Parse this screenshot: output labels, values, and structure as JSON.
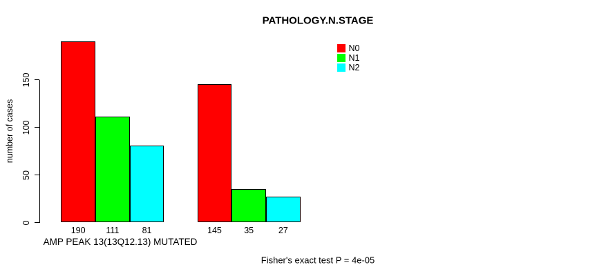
{
  "figure": {
    "title": "PATHOLOGY.N.STAGE",
    "y_axis_label": "number of cases",
    "group_label": "AMP PEAK 13(13Q12.13) MUTATED",
    "annotation": "Fisher's exact test P = 4e-05"
  },
  "chart_data": {
    "type": "bar",
    "title": "PATHOLOGY.N.STAGE",
    "xlabel": "AMP PEAK 13(13Q12.13) MUTATED",
    "ylabel": "number of cases",
    "categories": [
      "AMP PEAK 13(13Q12.13) MUTATED",
      ""
    ],
    "series": [
      {
        "name": "N0",
        "color": "#ff0000",
        "values": [
          190,
          145
        ]
      },
      {
        "name": "N1",
        "color": "#00ff00",
        "values": [
          111,
          35
        ]
      },
      {
        "name": "N2",
        "color": "#00ffff",
        "values": [
          81,
          27
        ]
      }
    ],
    "yticks": [
      0,
      50,
      100,
      150
    ],
    "ylim": [
      0,
      190
    ],
    "grid": false,
    "legend_position": "top-right",
    "bar_value_labels_shown": true,
    "annotation": "Fisher's exact test P = 4e-05"
  }
}
